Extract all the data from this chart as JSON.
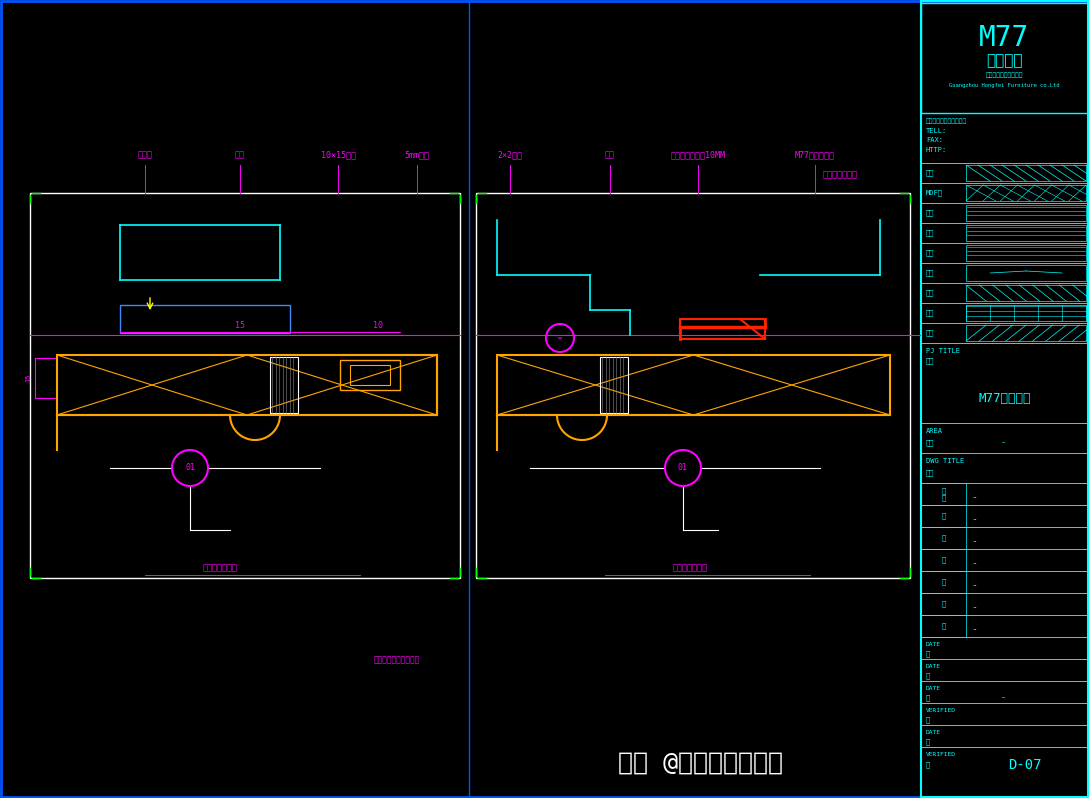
{
  "bg_color": "#000000",
  "border_color": "#0055FF",
  "cyan_color": "#00FFFF",
  "yellow_color": "#FFFF00",
  "magenta_color": "#FF00FF",
  "green_color": "#00FF00",
  "white_color": "#FFFFFF",
  "orange_color": "#FFA500",
  "red_color": "#FF2200",
  "fig_width": 10.89,
  "fig_height": 7.98,
  "title_text": "M77玻璃门板",
  "watermark": "头条 @火车头室内设计",
  "sheet_no": "D-07"
}
